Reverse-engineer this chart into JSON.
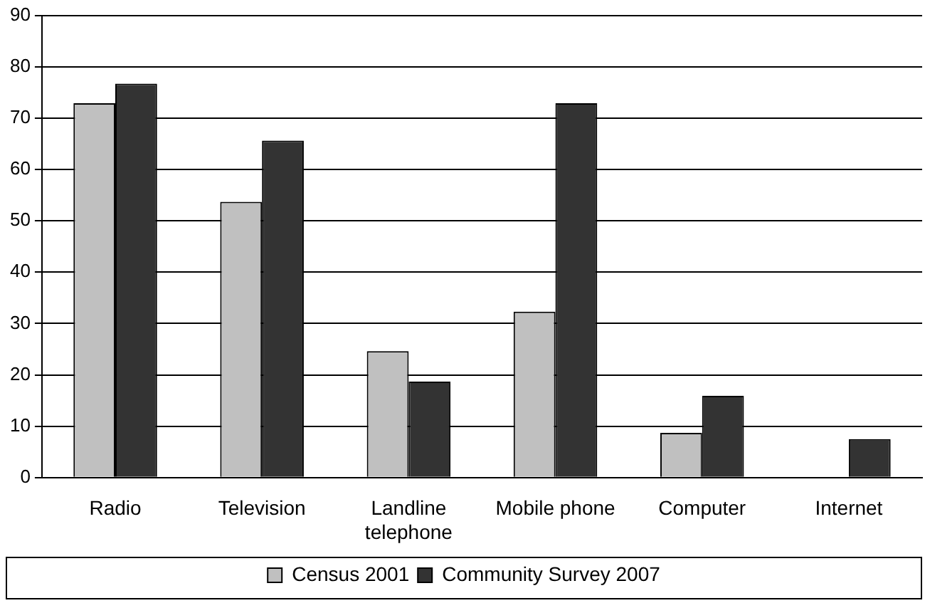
{
  "chart_data": {
    "type": "bar",
    "categories": [
      "Radio",
      "Television",
      "Landline telephone",
      "Mobile phone",
      "Computer",
      "Internet"
    ],
    "series": [
      {
        "name": "Census 2001",
        "color": "#c0c0c0",
        "values": [
          72.9,
          53.7,
          24.6,
          32.3,
          8.7,
          null
        ]
      },
      {
        "name": "Community Survey 2007",
        "color": "#333333",
        "values": [
          76.7,
          65.6,
          18.7,
          72.9,
          15.9,
          7.5
        ]
      }
    ],
    "ylim": [
      0,
      90
    ],
    "yticks": [
      0,
      10,
      20,
      30,
      40,
      50,
      60,
      70,
      80,
      90
    ],
    "grid": "y",
    "legend": "bottom"
  }
}
